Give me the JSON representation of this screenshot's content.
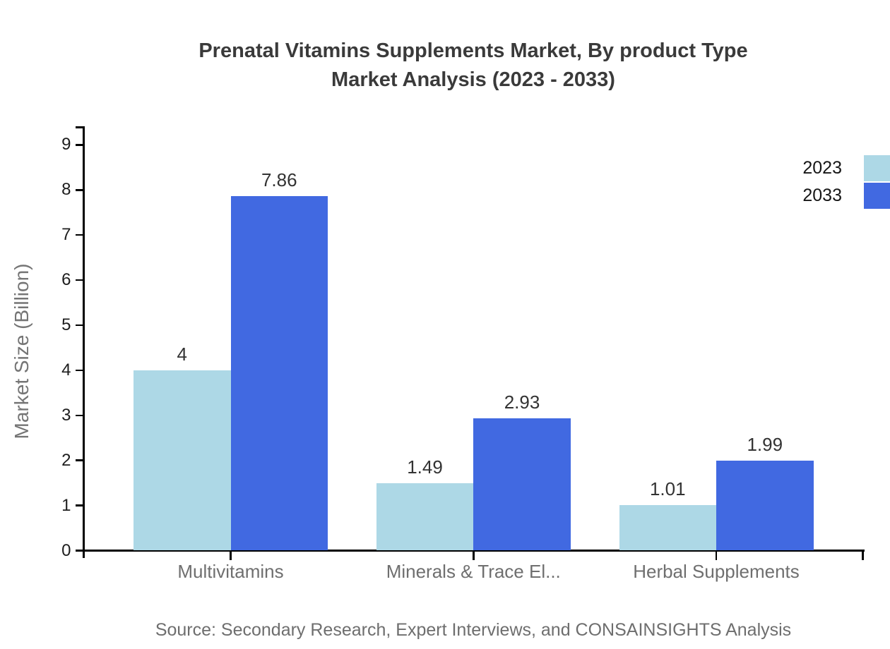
{
  "chart_data": {
    "type": "bar",
    "title": "Prenatal Vitamins Supplements Market, By product Type Market Analysis (2023 - 2033)",
    "title_lines": [
      "Prenatal Vitamins Supplements Market, By product Type",
      "Market Analysis (2023 - 2033)"
    ],
    "categories": [
      "Multivitamins",
      "Minerals & Trace El...",
      "Herbal Supplements"
    ],
    "series": [
      {
        "name": "2023",
        "color": "#ADD8E6",
        "values": [
          4,
          1.49,
          1.01
        ],
        "value_labels": [
          "4",
          "1.49",
          "1.01"
        ]
      },
      {
        "name": "2033",
        "color": "#4169E1",
        "values": [
          7.86,
          2.93,
          1.99
        ],
        "value_labels": [
          "7.86",
          "2.93",
          "1.99"
        ]
      }
    ],
    "xlabel": "",
    "ylabel": "Market Size (Billion)",
    "ylim": [
      0,
      9
    ],
    "yticks": [
      "0",
      "1",
      "2",
      "3",
      "4",
      "5",
      "6",
      "7",
      "8",
      "9"
    ],
    "grid": false,
    "legend_position": "top-right",
    "source": "Source: Secondary Research, Expert Interviews, and CONSAINSIGHTS Analysis"
  },
  "colors": {
    "axis": "#000000",
    "title_text": "#3a3a3a",
    "value_label": "#333333",
    "tick_label": "#1d1d1d",
    "category_label": "#6f6f6f",
    "axis_title": "#757575",
    "source_text": "#6e6e6e",
    "series_2023": "#ADD8E6",
    "series_2033": "#4169E1"
  }
}
